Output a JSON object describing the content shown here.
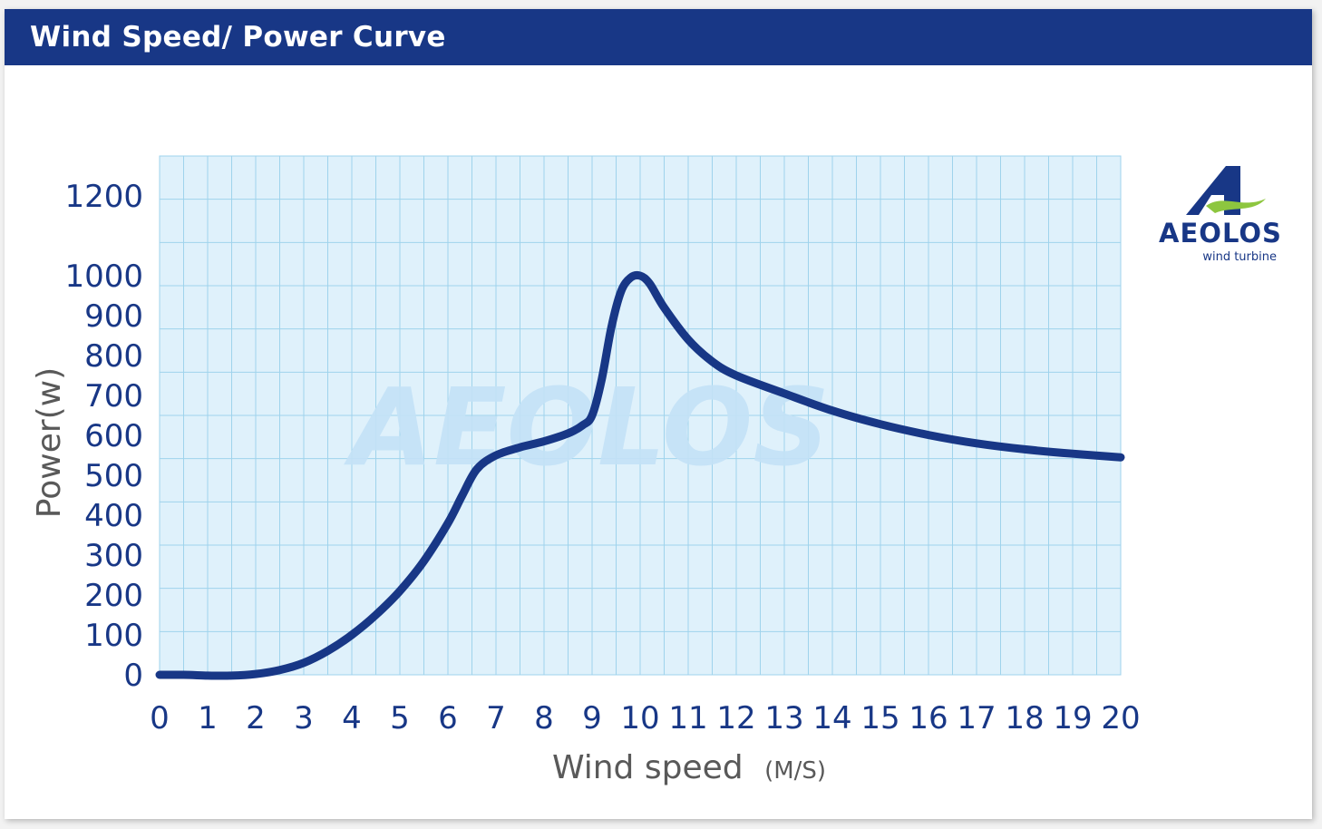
{
  "header": {
    "title": "Wind Speed/ Power Curve"
  },
  "watermark": {
    "text": "AEOLOS"
  },
  "logo": {
    "brand": "AEOLOS",
    "tagline": "wind turbine"
  },
  "colors": {
    "title_bar": "#183786",
    "curve": "#183786",
    "plot_bg": "#dff1fb",
    "grid": "#9fd3ec",
    "tick_text": "#183786",
    "axis_title": "#595959",
    "logo_green": "#8dc63f",
    "watermark": "#c4e2f7"
  },
  "chart_data": {
    "type": "line",
    "xlabel": "Wind speed",
    "xlabel_unit": "(M/S)",
    "ylabel": "Power(w)",
    "xlim": [
      0,
      20
    ],
    "ylim": [
      0,
      1200
    ],
    "x_ticks": [
      0,
      1,
      2,
      3,
      4,
      5,
      6,
      7,
      8,
      9,
      10,
      11,
      12,
      13,
      14,
      15,
      16,
      17,
      18,
      19,
      20
    ],
    "y_ticks": [
      0,
      100,
      200,
      300,
      400,
      500,
      600,
      700,
      800,
      900,
      1000,
      1200
    ],
    "grid": true,
    "series": [
      {
        "x": [
          0,
          0.5,
          1,
          1.5,
          2,
          2.5,
          3,
          3.5,
          4,
          4.5,
          5,
          5.5,
          6,
          6.3,
          6.6,
          7,
          7.5,
          8,
          8.5,
          8.8,
          9,
          9.2,
          9.4,
          9.6,
          9.8,
          10,
          10.2,
          10.5,
          11,
          11.5,
          12,
          13,
          14,
          15,
          16,
          17,
          18,
          19,
          20
        ],
        "y": [
          0,
          0,
          -2,
          -2,
          2,
          12,
          30,
          60,
          100,
          150,
          210,
          285,
          380,
          450,
          515,
          550,
          570,
          585,
          605,
          625,
          650,
          740,
          870,
          960,
          995,
          1000,
          980,
          920,
          840,
          785,
          750,
          705,
          662,
          628,
          601,
          580,
          565,
          554,
          545
        ]
      }
    ]
  }
}
